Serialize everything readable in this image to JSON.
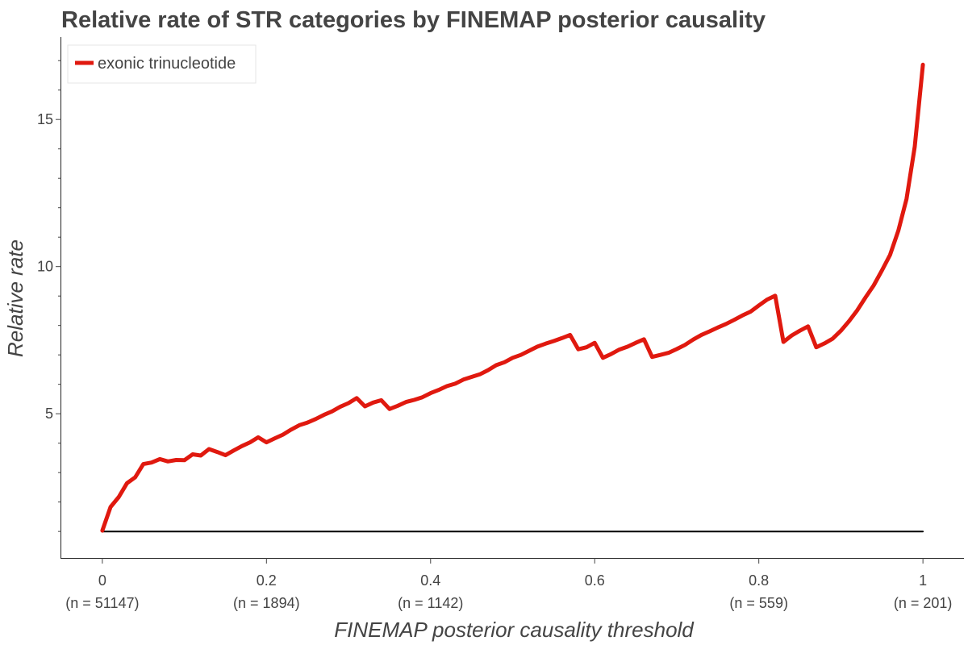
{
  "chart_data": {
    "type": "line",
    "title": "Relative rate of STR categories by FINEMAP posterior causality",
    "xlabel": "FINEMAP posterior causality threshold",
    "ylabel": "Relative rate",
    "xlim": [
      -0.05,
      1.05
    ],
    "ylim": [
      0.1,
      17.8
    ],
    "x_ticks": [
      {
        "value": 0,
        "label": "0",
        "sublabel": "(n = 51147)"
      },
      {
        "value": 0.2,
        "label": "0.2",
        "sublabel": "(n = 1894)"
      },
      {
        "value": 0.4,
        "label": "0.4",
        "sublabel": "(n = 1142)"
      },
      {
        "value": 0.6,
        "label": "0.6",
        "sublabel": ""
      },
      {
        "value": 0.8,
        "label": "0.8",
        "sublabel": "(n = 559)"
      },
      {
        "value": 1,
        "label": "1",
        "sublabel": "(n = 201)"
      }
    ],
    "y_ticks": [
      {
        "value": 5,
        "label": "5"
      },
      {
        "value": 10,
        "label": "10"
      },
      {
        "value": 15,
        "label": "15"
      }
    ],
    "y_minor_ticks": [
      1,
      2,
      3,
      4,
      6,
      7,
      8,
      9,
      11,
      12,
      13,
      14,
      16,
      17
    ],
    "legend_position": "top-left",
    "series": [
      {
        "name": "exonic trinucleotide",
        "color": "#e0190f",
        "x": [
          0,
          0.01,
          0.02,
          0.03,
          0.04,
          0.05,
          0.06,
          0.07,
          0.08,
          0.09,
          0.1,
          0.11,
          0.12,
          0.13,
          0.14,
          0.15,
          0.16,
          0.17,
          0.18,
          0.19,
          0.2,
          0.21,
          0.22,
          0.23,
          0.24,
          0.25,
          0.26,
          0.27,
          0.28,
          0.29,
          0.3,
          0.31,
          0.32,
          0.33,
          0.34,
          0.35,
          0.36,
          0.37,
          0.38,
          0.39,
          0.4,
          0.41,
          0.42,
          0.43,
          0.44,
          0.45,
          0.46,
          0.47,
          0.48,
          0.49,
          0.5,
          0.51,
          0.52,
          0.53,
          0.54,
          0.55,
          0.56,
          0.57,
          0.58,
          0.59,
          0.6,
          0.61,
          0.62,
          0.63,
          0.64,
          0.65,
          0.66,
          0.67,
          0.68,
          0.69,
          0.7,
          0.71,
          0.72,
          0.73,
          0.74,
          0.75,
          0.76,
          0.77,
          0.78,
          0.79,
          0.8,
          0.81,
          0.82,
          0.83,
          0.84,
          0.85,
          0.86,
          0.87,
          0.88,
          0.89,
          0.9,
          0.91,
          0.92,
          0.93,
          0.94,
          0.95,
          0.96,
          0.97,
          0.98,
          0.99,
          1.0
        ],
        "values": [
          1.03,
          1.83,
          2.17,
          2.64,
          2.84,
          3.29,
          3.34,
          3.46,
          3.38,
          3.43,
          3.42,
          3.62,
          3.58,
          3.8,
          3.7,
          3.59,
          3.75,
          3.9,
          4.03,
          4.2,
          4.03,
          4.16,
          4.29,
          4.46,
          4.61,
          4.7,
          4.82,
          4.96,
          5.08,
          5.24,
          5.36,
          5.53,
          5.25,
          5.38,
          5.46,
          5.16,
          5.27,
          5.4,
          5.47,
          5.56,
          5.7,
          5.81,
          5.94,
          6.02,
          6.16,
          6.25,
          6.34,
          6.48,
          6.65,
          6.75,
          6.9,
          7.0,
          7.14,
          7.28,
          7.38,
          7.47,
          7.57,
          7.68,
          7.19,
          7.26,
          7.41,
          6.9,
          7.03,
          7.18,
          7.28,
          7.41,
          7.53,
          6.93,
          7.0,
          7.07,
          7.2,
          7.34,
          7.52,
          7.68,
          7.8,
          7.93,
          8.05,
          8.19,
          8.34,
          8.47,
          8.68,
          8.88,
          9.01,
          7.44,
          7.66,
          7.82,
          7.97,
          7.26,
          7.39,
          7.55,
          7.82,
          8.15,
          8.52,
          8.95,
          9.36,
          9.87,
          10.4,
          11.22,
          12.3,
          14.08,
          16.86
        ]
      },
      {
        "name": "",
        "color": "#000000",
        "x": [
          0,
          1
        ],
        "values": [
          1,
          1
        ]
      }
    ]
  }
}
